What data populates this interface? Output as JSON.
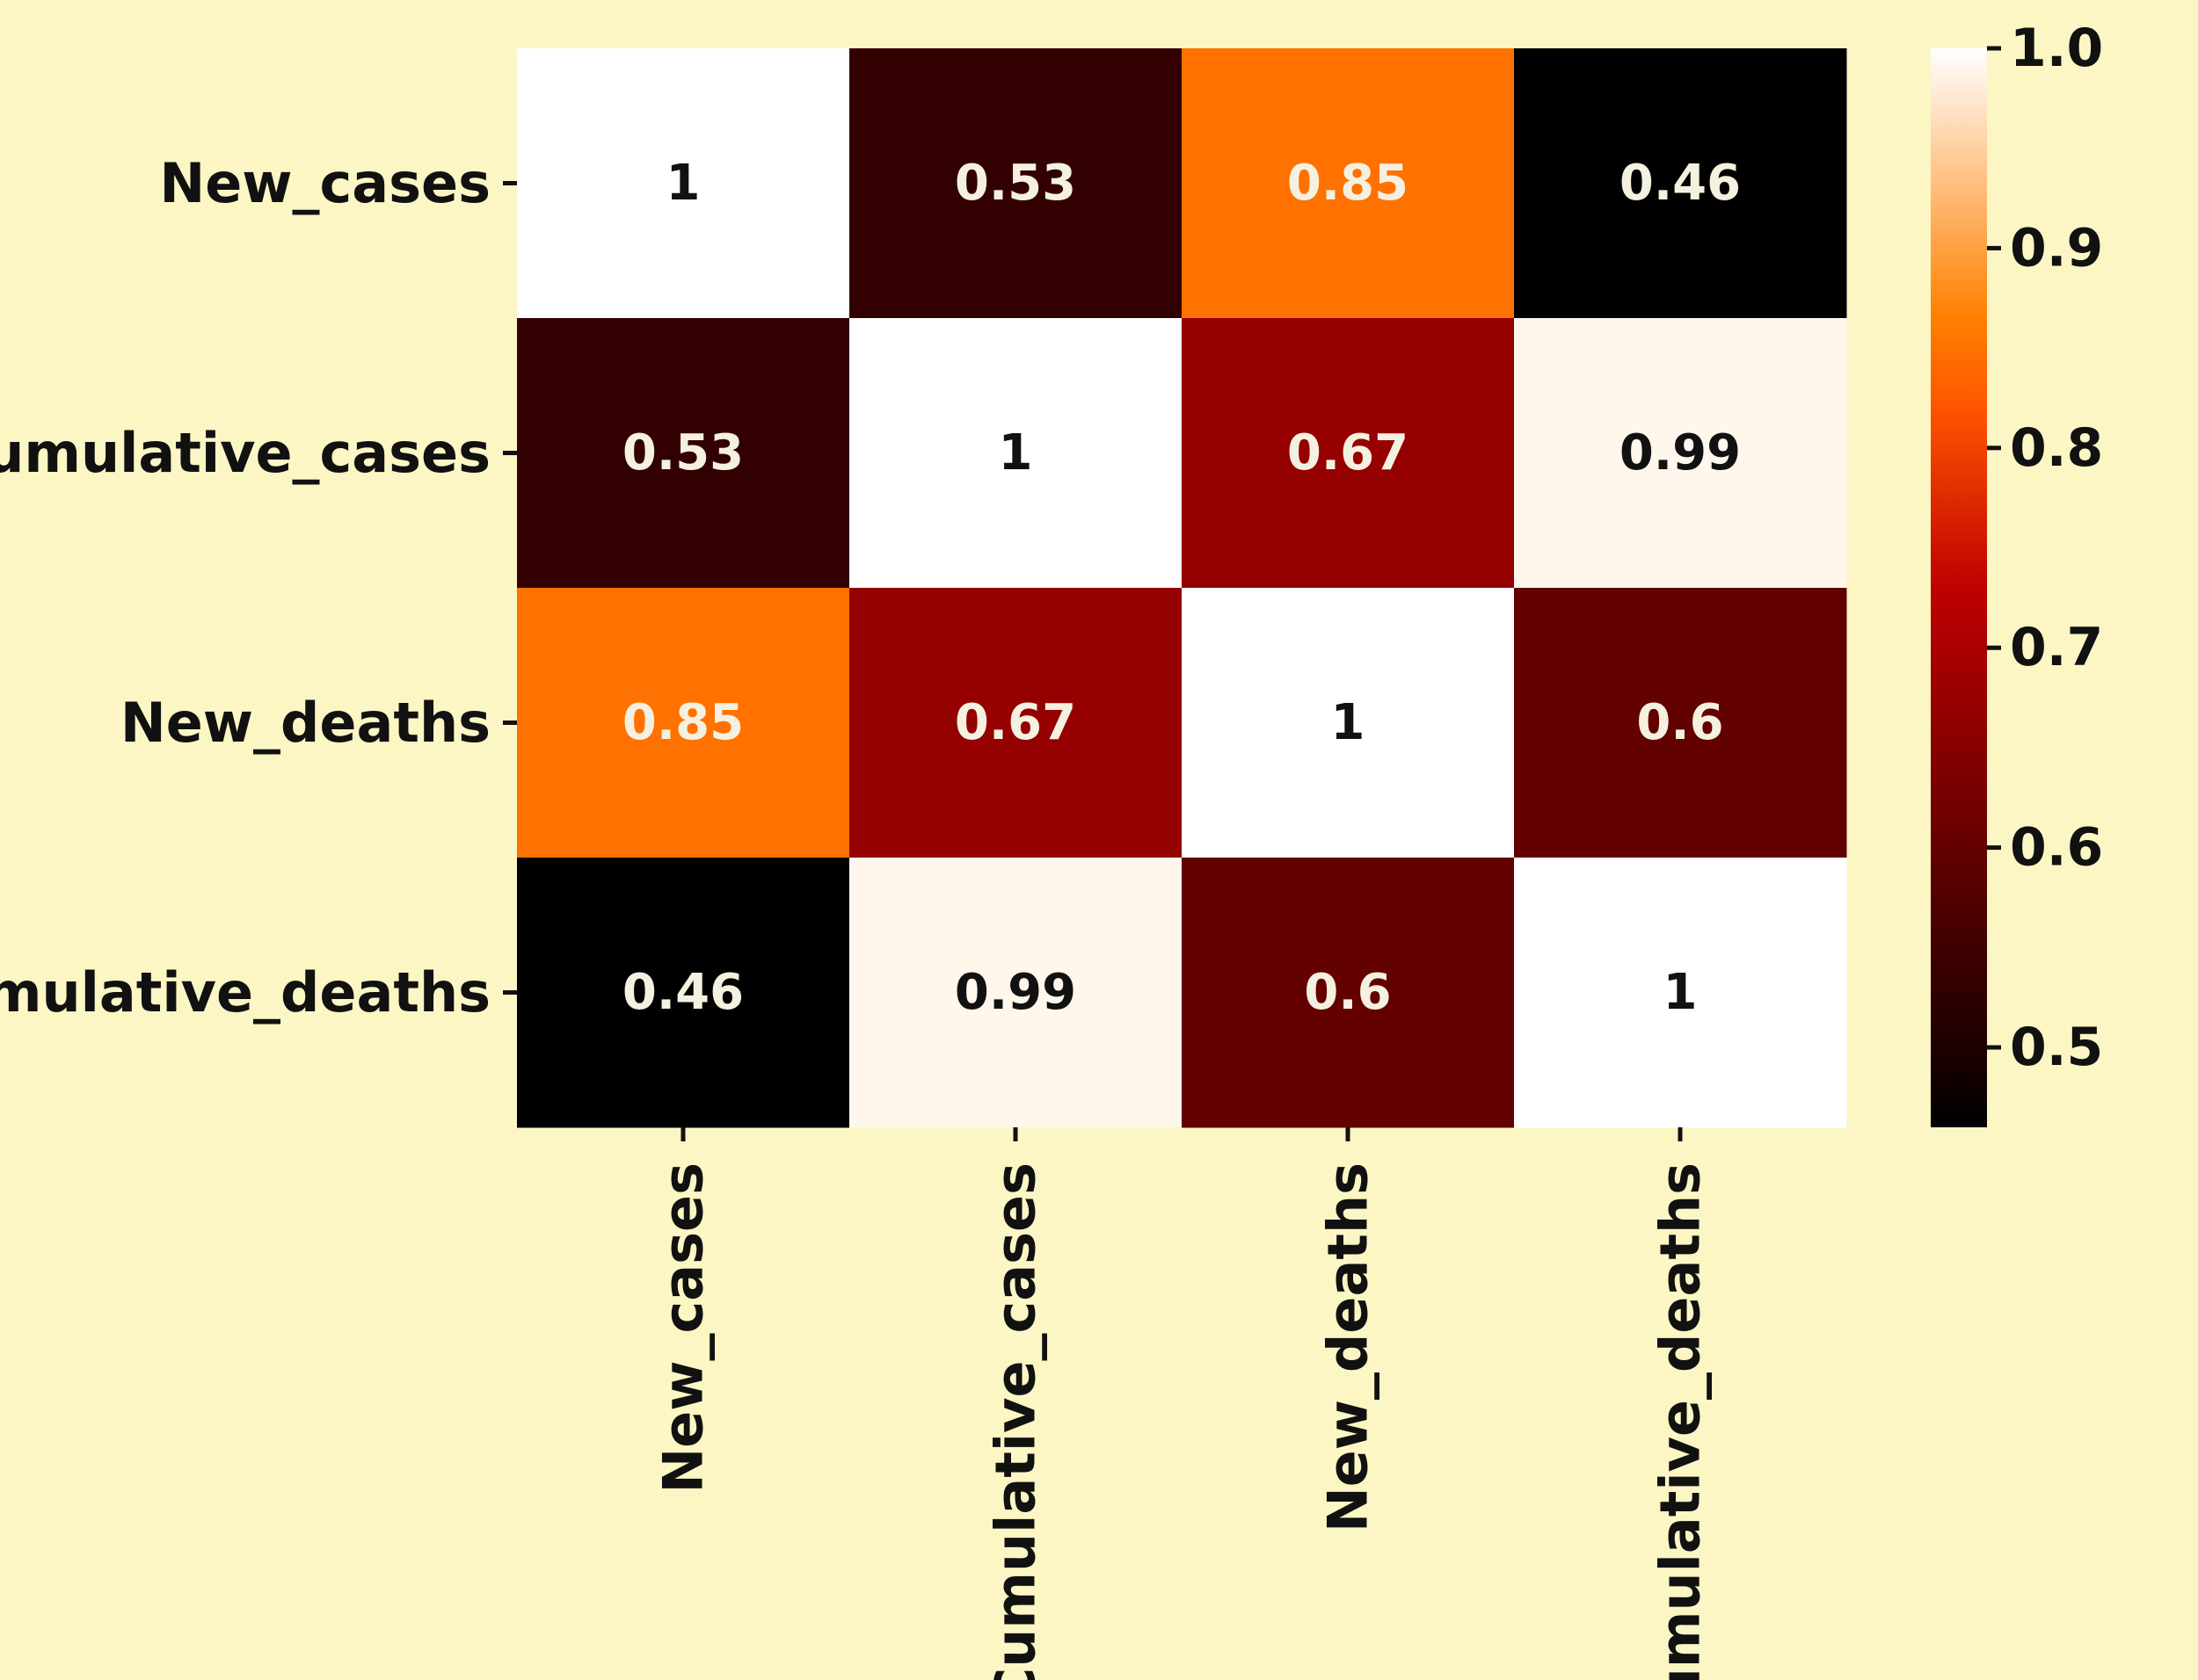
{
  "chart_data": {
    "type": "heatmap",
    "title": "",
    "xlabel": "",
    "ylabel": "",
    "rows": [
      "New_cases",
      "Cumulative_cases",
      "New_deaths",
      "Cumulative_deaths"
    ],
    "columns": [
      "New_cases",
      "Cumulative_cases",
      "New_deaths",
      "Cumulative_deaths"
    ],
    "values": [
      [
        1,
        0.53,
        0.85,
        0.46
      ],
      [
        0.53,
        1,
        0.67,
        0.99
      ],
      [
        0.85,
        0.67,
        1,
        0.6
      ],
      [
        0.46,
        0.99,
        0.6,
        1
      ]
    ],
    "annotations": [
      [
        "1",
        "0.53",
        "0.85",
        "0.46"
      ],
      [
        "0.53",
        "1",
        "0.67",
        "0.99"
      ],
      [
        "0.85",
        "0.67",
        "1",
        "0.6"
      ],
      [
        "0.46",
        "0.99",
        "0.6",
        "1"
      ]
    ],
    "colormap": "gist_heat",
    "colorbar": {
      "min": 0.46,
      "max": 1.0,
      "ticks": [
        1.0,
        0.9,
        0.8,
        0.7,
        0.6,
        0.5
      ],
      "tick_labels": [
        "1.0",
        "0.9",
        "0.8",
        "0.7",
        "0.6",
        "0.5"
      ]
    },
    "colors": {
      "background": "#FBF6C4",
      "text": "#111111"
    }
  }
}
